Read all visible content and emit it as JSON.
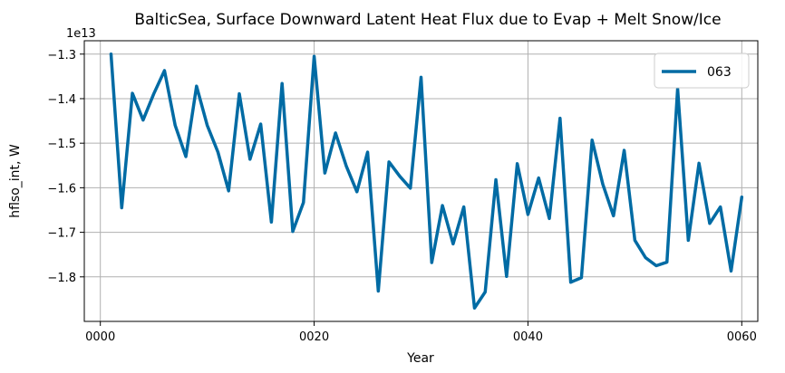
{
  "chart_data": {
    "type": "line",
    "title": "BalticSea, Surface Downward Latent Heat Flux due to Evap + Melt Snow/Ice",
    "xlabel": "Year",
    "ylabel": "hflso_int, W",
    "offset_label": "1e13",
    "scale": 10000000000000.0,
    "xlim": [
      -1.5,
      61.5
    ],
    "ylim": [
      -1.9,
      -1.27
    ],
    "xticks": [
      0,
      20,
      40,
      60
    ],
    "xtick_labels": [
      "0000",
      "0020",
      "0040",
      "0060"
    ],
    "yticks": [
      -1.8,
      -1.7,
      -1.6,
      -1.5,
      -1.4,
      -1.3
    ],
    "ytick_labels": [
      "−1.8",
      "−1.7",
      "−1.6",
      "−1.5",
      "−1.4",
      "−1.3"
    ],
    "grid": true,
    "legend_position": "top-right",
    "series": [
      {
        "name": "063",
        "color": "#006ba4",
        "x": [
          1,
          2,
          3,
          4,
          5,
          6,
          7,
          8,
          9,
          10,
          11,
          12,
          13,
          14,
          15,
          16,
          17,
          18,
          19,
          20,
          21,
          22,
          23,
          24,
          25,
          26,
          27,
          28,
          29,
          30,
          31,
          32,
          33,
          34,
          35,
          36,
          37,
          38,
          39,
          40,
          41,
          42,
          43,
          44,
          45,
          46,
          47,
          48,
          49,
          50,
          51,
          52,
          53,
          54,
          55,
          56,
          57,
          58,
          59,
          60
        ],
        "y": [
          -1.3,
          -1.645,
          -1.388,
          -1.448,
          -1.389,
          -1.337,
          -1.46,
          -1.53,
          -1.372,
          -1.46,
          -1.52,
          -1.607,
          -1.389,
          -1.536,
          -1.457,
          -1.677,
          -1.366,
          -1.698,
          -1.633,
          -1.305,
          -1.567,
          -1.477,
          -1.551,
          -1.609,
          -1.52,
          -1.832,
          -1.542,
          -1.574,
          -1.601,
          -1.352,
          -1.768,
          -1.64,
          -1.726,
          -1.643,
          -1.87,
          -1.834,
          -1.582,
          -1.799,
          -1.546,
          -1.66,
          -1.578,
          -1.669,
          -1.444,
          -1.812,
          -1.802,
          -1.493,
          -1.592,
          -1.663,
          -1.516,
          -1.718,
          -1.757,
          -1.775,
          -1.767,
          -1.378,
          -1.718,
          -1.545,
          -1.68,
          -1.643,
          -1.787,
          -1.621
        ]
      }
    ]
  }
}
